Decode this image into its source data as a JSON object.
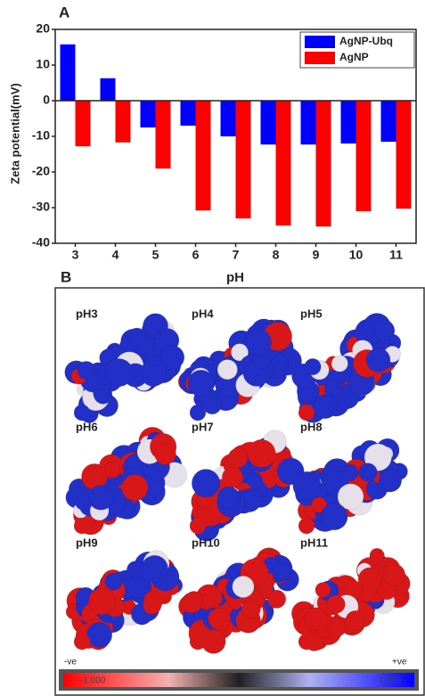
{
  "chart_data": {
    "type": "bar",
    "panel_label": "A",
    "y_label": "Zeta potential(mV)",
    "x_label": "pH",
    "categories": [
      "3",
      "4",
      "5",
      "6",
      "7",
      "8",
      "9",
      "10",
      "11"
    ],
    "series": [
      {
        "name": "AgNP-Ubq",
        "color": "#0000ff",
        "values": [
          15.8,
          6.3,
          -7.5,
          -7,
          -10,
          -12.3,
          -12.3,
          -12,
          -11.5
        ]
      },
      {
        "name": "AgNP",
        "color": "#ff0000",
        "values": [
          -12.8,
          -11.7,
          -19,
          -30.8,
          -33,
          -35,
          -35.3,
          -31,
          -30.3
        ]
      }
    ],
    "ylim": [
      -40,
      20
    ],
    "yticks": [
      -40,
      -30,
      -20,
      -10,
      0,
      10,
      20
    ],
    "legend": "top-right"
  },
  "panel_b": {
    "label": "B",
    "images": [
      "pH3",
      "pH4",
      "pH5",
      "pH6",
      "pH7",
      "pH8",
      "pH9",
      "pH10",
      "pH11"
    ],
    "colorbar": {
      "neg": "-ve",
      "pos": "+ve",
      "min_label": "-1.000",
      "max_label": "1.000"
    }
  }
}
